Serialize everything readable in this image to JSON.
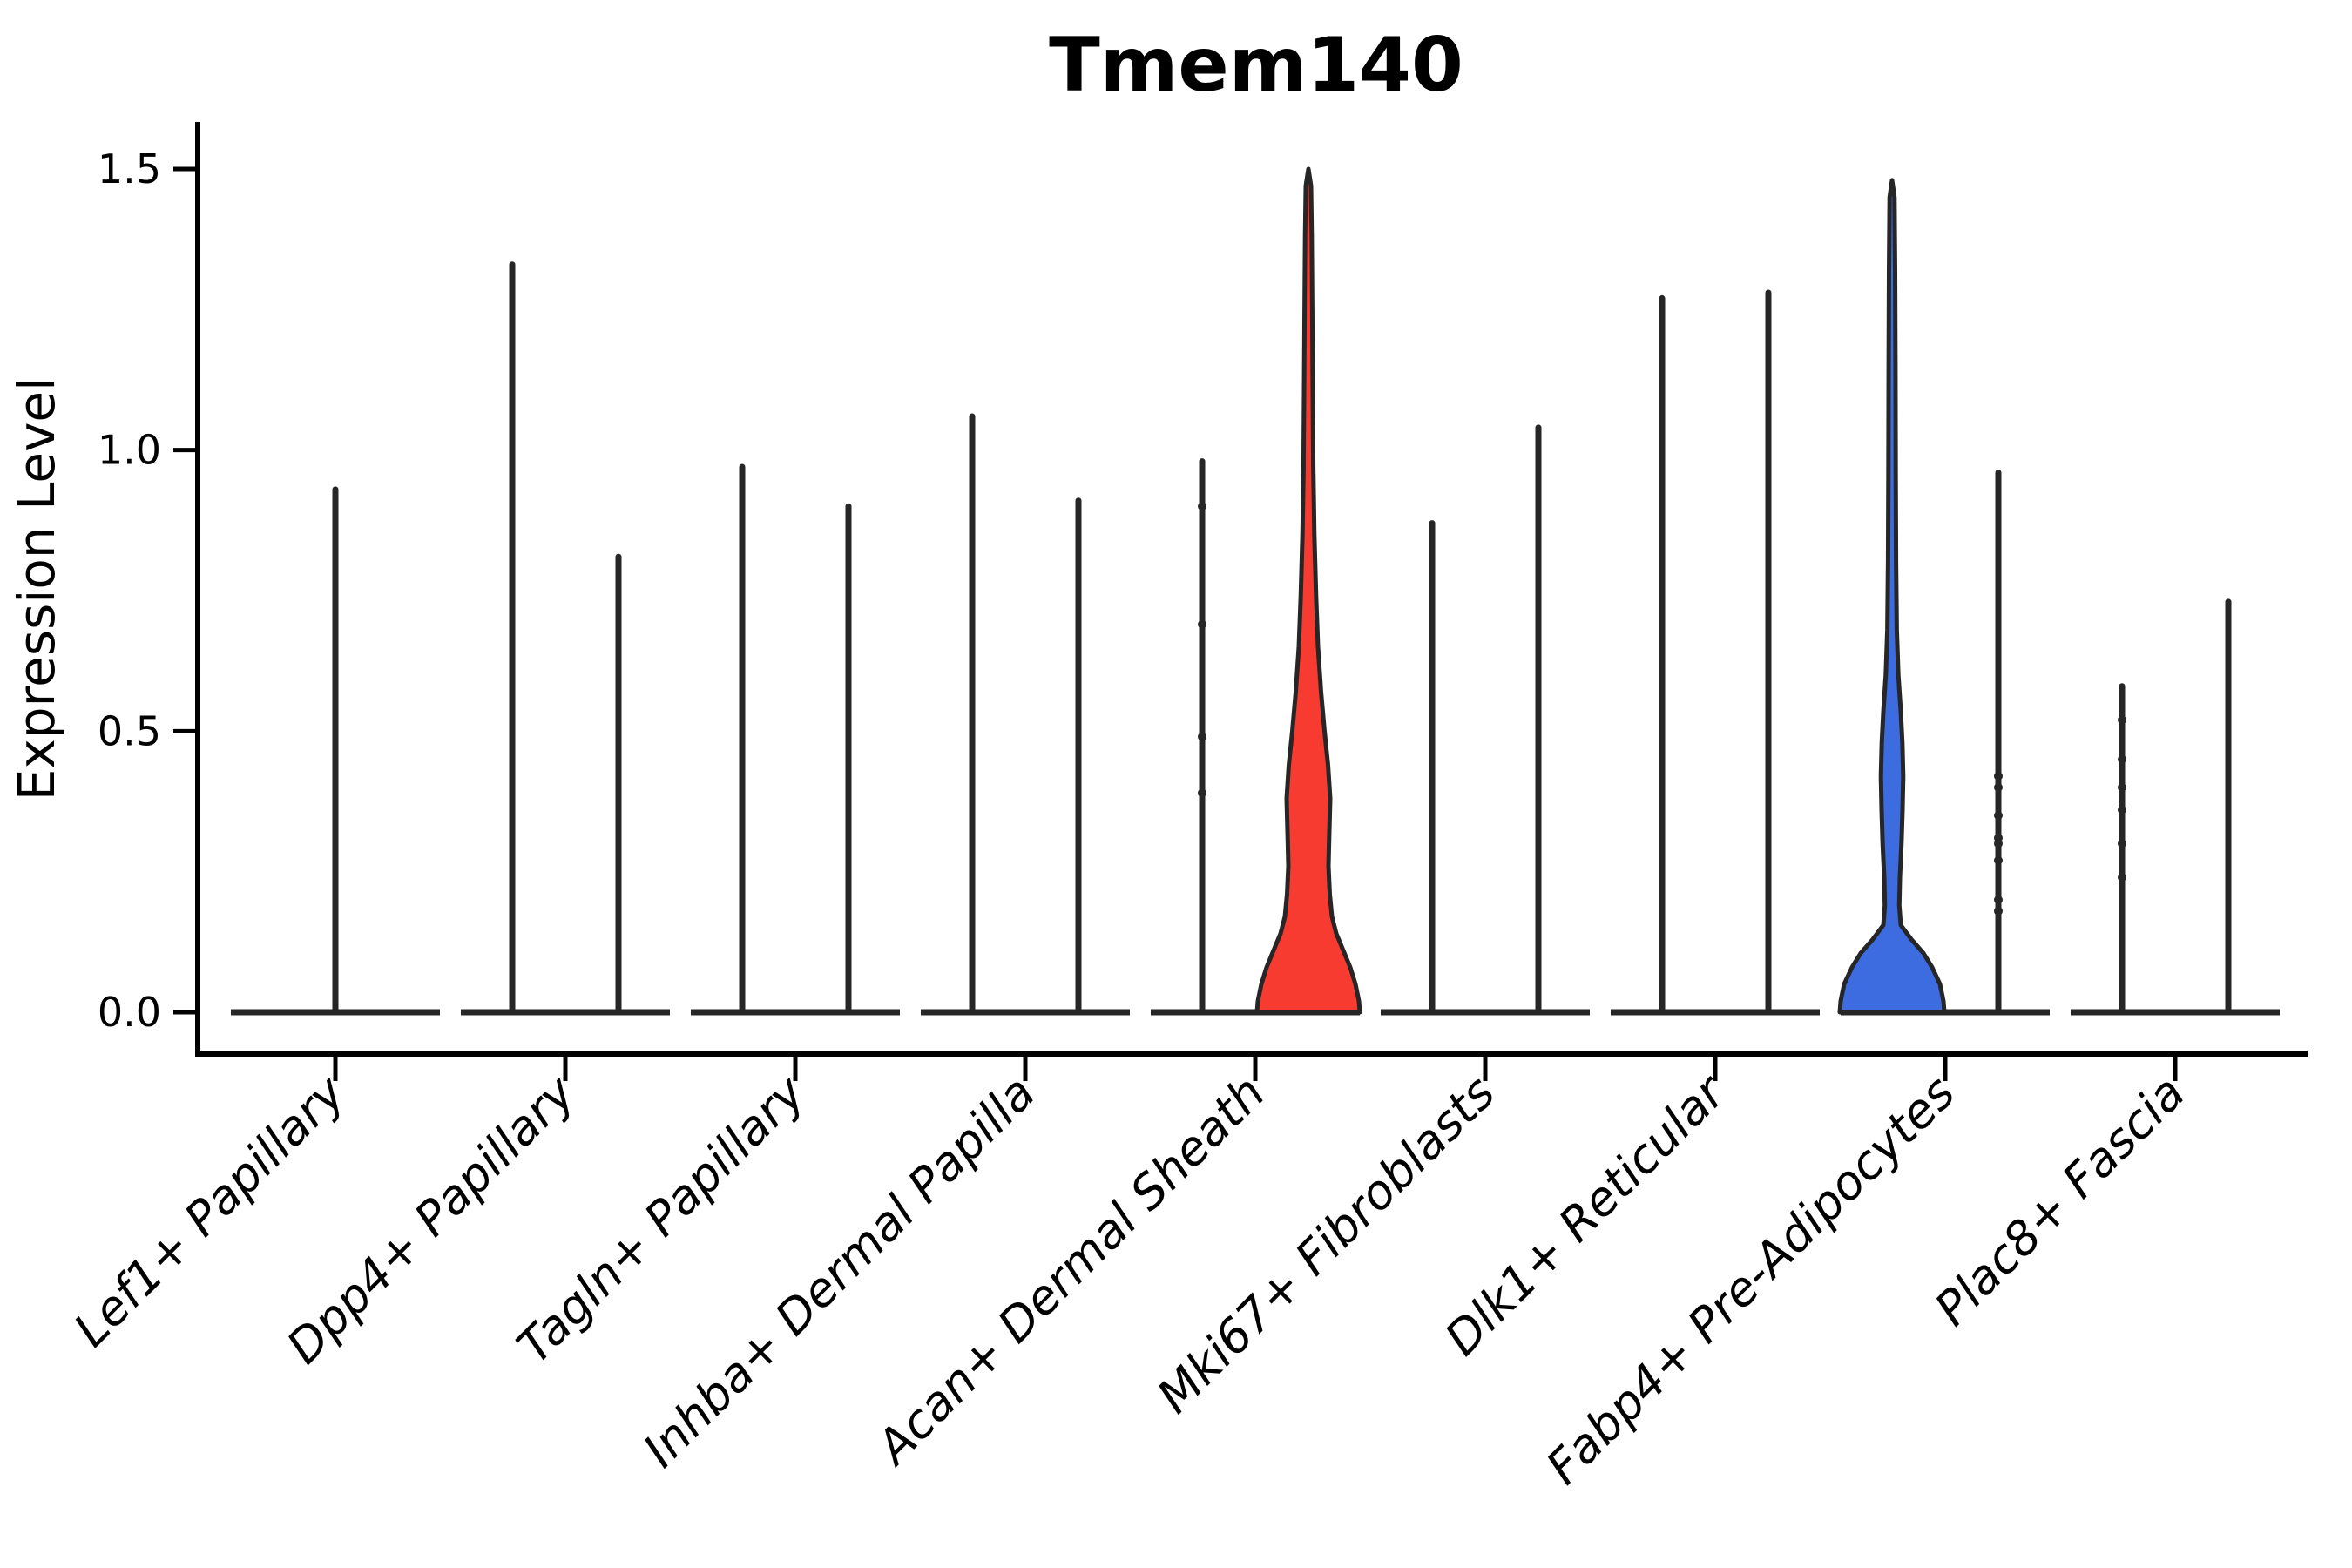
{
  "title": "Tmem140",
  "y_axis": {
    "label": "Expression Level",
    "tick_labels": [
      "0.0",
      "0.5",
      "1.0",
      "1.5"
    ],
    "tick_values": [
      0,
      0.5,
      1.0,
      1.5
    ],
    "range": [
      0,
      1.5
    ]
  },
  "x_axis": {
    "categories": [
      "Lef1+ Papillary",
      "Dpp4+ Papillary",
      "Tagln+ Papillary",
      "Inhba+ Dermal Papilla",
      "Acan+ Dermal Sheath",
      "Mki67+ Fibroblasts",
      "Dlk1+ Reticular",
      "Fabp4+ Pre-Adipocytes",
      "Plac8+ Fascia"
    ]
  },
  "colors": {
    "highlight_red": "#F73B31",
    "highlight_blue": "#3D6CE0",
    "violin_outline": "#262626",
    "axis": "#000000",
    "background": "#FFFFFF"
  },
  "chart_data": {
    "type": "violin",
    "title": "Tmem140",
    "xlabel": "",
    "ylabel": "Expression Level",
    "ylim": [
      0,
      1.5
    ],
    "yticks": [
      0,
      0.5,
      1.0,
      1.5
    ],
    "grid": false,
    "legend": "none",
    "categories": [
      "Lef1+ Papillary",
      "Dpp4+ Papillary",
      "Tagln+ Papillary",
      "Inhba+ Dermal Papilla",
      "Acan+ Dermal Sheath",
      "Mki67+ Fibroblasts",
      "Dlk1+ Reticular",
      "Fabp4+ Pre-Adipocytes",
      "Plac8+ Fascia"
    ],
    "violins": [
      {
        "category_index": 0,
        "category": "Lef1+ Papillary",
        "position": "center",
        "max_expression": 0.93,
        "fill": "white",
        "dots": []
      },
      {
        "category_index": 1,
        "category": "Dpp4+ Papillary",
        "position": "left",
        "max_expression": 1.33,
        "fill": "white",
        "dots": []
      },
      {
        "category_index": 1,
        "category": "Dpp4+ Papillary",
        "position": "right",
        "max_expression": 0.81,
        "fill": "white",
        "dots": []
      },
      {
        "category_index": 2,
        "category": "Tagln+ Papillary",
        "position": "left",
        "max_expression": 0.97,
        "fill": "white",
        "dots": []
      },
      {
        "category_index": 2,
        "category": "Tagln+ Papillary",
        "position": "right",
        "max_expression": 0.9,
        "fill": "white",
        "dots": []
      },
      {
        "category_index": 3,
        "category": "Inhba+ Dermal Papilla",
        "position": "left",
        "max_expression": 1.06,
        "fill": "white",
        "dots": []
      },
      {
        "category_index": 3,
        "category": "Inhba+ Dermal Papilla",
        "position": "right",
        "max_expression": 0.91,
        "fill": "white",
        "dots": []
      },
      {
        "category_index": 4,
        "category": "Acan+ Dermal Sheath",
        "position": "left",
        "max_expression": 0.98,
        "fill": "white",
        "dots": [
          0.9,
          0.69,
          0.49,
          0.39
        ]
      },
      {
        "category_index": 4,
        "category": "Acan+ Dermal Sheath",
        "position": "right",
        "max_expression": 1.5,
        "fill": "#F73B31",
        "profile": [
          [
            0,
            59
          ],
          [
            0.02,
            58
          ],
          [
            0.05,
            54
          ],
          [
            0.08,
            48
          ],
          [
            0.11,
            40
          ],
          [
            0.14,
            32
          ],
          [
            0.17,
            27
          ],
          [
            0.21,
            24.5
          ],
          [
            0.26,
            23
          ],
          [
            0.31,
            23.8
          ],
          [
            0.38,
            25
          ],
          [
            0.44,
            22.5
          ],
          [
            0.5,
            18.5
          ],
          [
            0.57,
            14.5
          ],
          [
            0.65,
            11
          ],
          [
            0.74,
            8.8
          ],
          [
            0.85,
            6.8
          ],
          [
            0.97,
            5.6
          ],
          [
            1.1,
            5
          ],
          [
            1.25,
            4.4
          ],
          [
            1.38,
            3.8
          ],
          [
            1.47,
            3
          ],
          [
            1.5,
            0
          ]
        ],
        "dots": []
      },
      {
        "category_index": 5,
        "category": "Mki67+ Fibroblasts",
        "position": "left",
        "max_expression": 0.87,
        "fill": "white",
        "dots": []
      },
      {
        "category_index": 5,
        "category": "Mki67+ Fibroblasts",
        "position": "right",
        "max_expression": 1.04,
        "fill": "white",
        "dots": []
      },
      {
        "category_index": 6,
        "category": "Dlk1+ Reticular",
        "position": "left",
        "max_expression": 1.27,
        "fill": "white",
        "dots": []
      },
      {
        "category_index": 6,
        "category": "Dlk1+ Reticular",
        "position": "right",
        "max_expression": 1.28,
        "fill": "white",
        "dots": []
      },
      {
        "category_index": 7,
        "category": "Fabp4+ Pre-Adipocytes",
        "position": "left",
        "max_expression": 1.48,
        "fill": "#3D6CE0",
        "profile": [
          [
            0,
            60
          ],
          [
            0.02,
            59
          ],
          [
            0.05,
            55
          ],
          [
            0.08,
            46
          ],
          [
            0.105,
            36
          ],
          [
            0.13,
            22
          ],
          [
            0.155,
            10
          ],
          [
            0.19,
            8.3
          ],
          [
            0.24,
            9
          ],
          [
            0.3,
            10.8
          ],
          [
            0.36,
            12
          ],
          [
            0.42,
            12.8
          ],
          [
            0.48,
            11.8
          ],
          [
            0.54,
            9.8
          ],
          [
            0.6,
            7.2
          ],
          [
            0.68,
            5.4
          ],
          [
            0.8,
            4.6
          ],
          [
            0.95,
            4.2
          ],
          [
            1.15,
            3.9
          ],
          [
            1.32,
            3.5
          ],
          [
            1.45,
            2.8
          ],
          [
            1.48,
            0
          ]
        ],
        "dots": []
      },
      {
        "category_index": 7,
        "category": "Fabp4+ Pre-Adipocytes",
        "position": "right",
        "max_expression": 0.96,
        "fill": "white",
        "dots": [
          0.42,
          0.4,
          0.35,
          0.31,
          0.3,
          0.27,
          0.2,
          0.18
        ]
      },
      {
        "category_index": 8,
        "category": "Plac8+ Fascia",
        "position": "left",
        "max_expression": 0.58,
        "fill": "white",
        "dots": [
          0.52,
          0.45,
          0.4,
          0.36,
          0.3,
          0.24
        ]
      },
      {
        "category_index": 8,
        "category": "Plac8+ Fascia",
        "position": "right",
        "max_expression": 0.73,
        "fill": "white",
        "dots": []
      }
    ]
  }
}
